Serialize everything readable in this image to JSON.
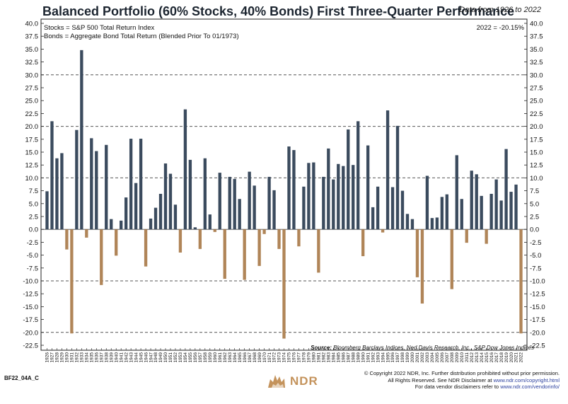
{
  "title": "Balanced Portfolio (60% Stocks, 40% Bonds) First Three-Quarter Performance",
  "subtitle": "Data from 1926 to 2022",
  "chart_data": {
    "type": "bar",
    "title": "Balanced Portfolio (60% Stocks, 40% Bonds) First Three-Quarter Performance",
    "xlabel": "",
    "ylabel": "",
    "ylim": [
      -25,
      40
    ],
    "yticks": [
      "40.0",
      "37.5",
      "35.0",
      "32.5",
      "30.0",
      "27.5",
      "25.0",
      "22.5",
      "20.0",
      "17.5",
      "15.0",
      "12.5",
      "10.0",
      "7.5",
      "5.0",
      "2.5",
      "0.0",
      "-2.5",
      "-5.0",
      "-7.5",
      "-10.0",
      "-12.5",
      "-15.0",
      "-17.5",
      "-20.0",
      "-22.5"
    ],
    "grid_dashed_at": [
      30,
      20,
      10,
      -10,
      -20
    ],
    "legend_lines": [
      "Stocks = S&P 500 Total Return Index",
      "Bonds = Aggregate Bond Total Return (Blended Prior To 01/1973)"
    ],
    "annotation": "2022 = -20.15%",
    "positive_color": "#3b4b5e",
    "negative_color": "#b08558",
    "categories": [
      "1926",
      "1927",
      "1928",
      "1929",
      "1930",
      "1931",
      "1932",
      "1933",
      "1934",
      "1935",
      "1936",
      "1937",
      "1938",
      "1939",
      "1940",
      "1941",
      "1942",
      "1943",
      "1944",
      "1945",
      "1946",
      "1947",
      "1948",
      "1949",
      "1950",
      "1951",
      "1952",
      "1953",
      "1954",
      "1955",
      "1956",
      "1957",
      "1958",
      "1959",
      "1960",
      "1961",
      "1962",
      "1963",
      "1964",
      "1965",
      "1966",
      "1967",
      "1968",
      "1969",
      "1970",
      "1971",
      "1972",
      "1973",
      "1974",
      "1975",
      "1976",
      "1977",
      "1978",
      "1979",
      "1980",
      "1981",
      "1982",
      "1983",
      "1984",
      "1985",
      "1986",
      "1987",
      "1988",
      "1989",
      "1990",
      "1991",
      "1992",
      "1993",
      "1994",
      "1995",
      "1996",
      "1997",
      "1998",
      "1999",
      "2000",
      "2001",
      "2002",
      "2003",
      "2004",
      "2005",
      "2006",
      "2007",
      "2008",
      "2009",
      "2010",
      "2011",
      "2012",
      "2013",
      "2014",
      "2015",
      "2016",
      "2017",
      "2018",
      "2019",
      "2020",
      "2021",
      "2022"
    ],
    "values": [
      7.4,
      21.0,
      13.8,
      14.8,
      -3.9,
      -20.2,
      19.3,
      34.8,
      -1.6,
      17.7,
      15.2,
      -10.8,
      16.4,
      2.0,
      -5.1,
      1.7,
      6.2,
      17.6,
      9.0,
      17.6,
      -7.2,
      2.1,
      4.2,
      6.9,
      12.8,
      10.8,
      4.8,
      -4.5,
      23.3,
      13.5,
      0.4,
      -3.8,
      13.8,
      2.9,
      -0.5,
      11.0,
      -9.6,
      10.2,
      9.8,
      5.9,
      -9.8,
      11.2,
      8.5,
      -7.1,
      -0.9,
      10.2,
      7.6,
      -3.8,
      -21.2,
      16.1,
      15.4,
      -3.3,
      8.3,
      12.9,
      13.0,
      -8.4,
      10.2,
      15.7,
      9.7,
      12.7,
      12.3,
      19.4,
      12.5,
      21.0,
      -5.2,
      16.3,
      4.3,
      8.3,
      -0.6,
      23.1,
      8.2,
      20.1,
      7.5,
      3.0,
      2.0,
      -9.3,
      -14.4,
      10.4,
      2.2,
      2.3,
      6.3,
      6.8,
      -11.6,
      14.4,
      5.9,
      -2.6,
      11.4,
      10.7,
      6.5,
      -2.8,
      6.9,
      9.7,
      5.6,
      15.6,
      7.3,
      8.7,
      -20.2
    ]
  },
  "source_label": "Source:",
  "source_text": "Bloomberg Barclays Indices, Ned Davis Research, Inc., S&P Dow Jones Indices",
  "footer_id": "BF22_04A_C",
  "logo_text": "NDR",
  "copyright_line1": "© Copyright 2022 NDR, Inc. Further distribution prohibited without prior permission.",
  "copyright_line2": "All Rights Reserved. See NDR Disclaimer at",
  "copyright_link1": "www.ndr.com/copyright.html",
  "copyright_line3": "For data vendor disclaimers refer to",
  "copyright_link2": "www.ndr.com/vendorinfo/"
}
